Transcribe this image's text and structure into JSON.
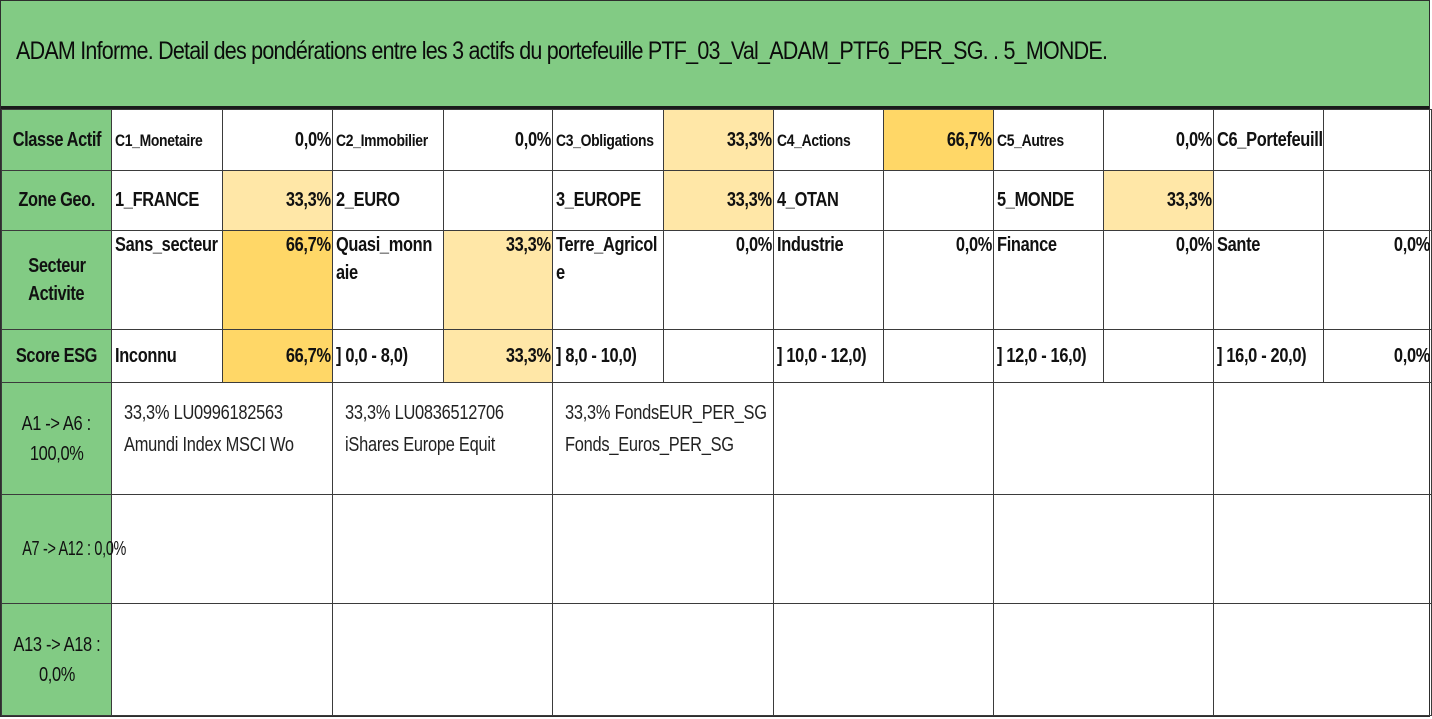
{
  "title": "ADAM Informe. Detail des pondérations entre les 3 actifs du portefeuille PTF_03_Val_ADAM_PTF6_PER_SG. . 5_MONDE.",
  "colors": {
    "header_green": "#82cb84",
    "light_yellow": "#ffe7a7",
    "dark_yellow": "#ffd767"
  },
  "rows": {
    "classe": {
      "label": "Classe Actif",
      "cells": [
        {
          "name": "C1_Monetaire",
          "value": "0,0%"
        },
        {
          "name": "C2_Immobilier",
          "value": "0,0%"
        },
        {
          "name": "C3_Obligations",
          "value": "33,3%"
        },
        {
          "name": "C4_Actions",
          "value": "66,7%"
        },
        {
          "name": "C5_Autres",
          "value": "0,0%"
        },
        {
          "name": "C6_Portefeuill",
          "value": ""
        }
      ]
    },
    "zone": {
      "label": "Zone Geo.",
      "cells": [
        {
          "name": "1_FRANCE",
          "value": "33,3%"
        },
        {
          "name": "2_EURO",
          "value": ""
        },
        {
          "name": "3_EUROPE",
          "value": "33,3%"
        },
        {
          "name": "4_OTAN",
          "value": ""
        },
        {
          "name": "5_MONDE",
          "value": "33,3%"
        },
        {
          "name": "",
          "value": ""
        }
      ]
    },
    "secteur": {
      "label_line1": "Secteur",
      "label_line2": "Activite",
      "cells": [
        {
          "name": "Sans_secteur",
          "name2": "",
          "value": "66,7%"
        },
        {
          "name": "Quasi_monn",
          "name2": "aie",
          "value": "33,3%"
        },
        {
          "name": "Terre_Agricol",
          "name2": "e",
          "value": "0,0%"
        },
        {
          "name": "Industrie",
          "name2": "",
          "value": "0,0%"
        },
        {
          "name": "Finance",
          "name2": "",
          "value": "0,0%"
        },
        {
          "name": "Sante",
          "name2": "",
          "value": "0,0%"
        }
      ]
    },
    "esg": {
      "label": "Score ESG",
      "cells": [
        {
          "name": "Inconnu",
          "value": "66,7%"
        },
        {
          "name": "] 0,0 - 8,0)",
          "value": "33,3%"
        },
        {
          "name": "] 8,0 - 10,0)",
          "value": ""
        },
        {
          "name": "] 10,0 - 12,0)",
          "value": ""
        },
        {
          "name": "] 12,0 - 16,0)",
          "value": ""
        },
        {
          "name": "] 16,0 - 20,0)",
          "value": "0,0%"
        }
      ]
    }
  },
  "asset_groups": [
    {
      "label_line1": "A1 -> A6 :",
      "label_line2": "100,0%",
      "assets": [
        {
          "line1": "33,3% LU0996182563",
          "line2": "Amundi Index MSCI Wo"
        },
        {
          "line1": "33,3% LU0836512706",
          "line2": "iShares Europe Equit"
        },
        {
          "line1": "33,3% FondsEUR_PER_SG",
          "line2": "Fonds_Euros_PER_SG"
        }
      ]
    },
    {
      "label_line1": "A7 -> A12 : 0,0%",
      "label_line2": "",
      "assets": []
    },
    {
      "label_line1": "A13 -> A18 :",
      "label_line2": "0,0%",
      "assets": []
    }
  ]
}
